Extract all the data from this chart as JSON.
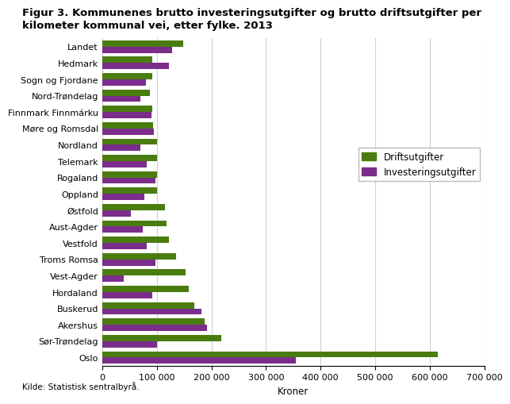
{
  "title_line1": "Figur 3. Kommunenes brutto investeringsutgifter og brutto driftsutgifter per",
  "title_line2": "kilometer kommunal vei, etter fylke. 2013",
  "xlabel": "Kroner",
  "source": "Kilde: Statistisk sentralbyrå.",
  "categories": [
    "Landet",
    "Hedmark",
    "Sogn og Fjordane",
    "Nord-Trøndelag",
    "Finnmark Finnmárku",
    "Møre og Romsdal",
    "Nordland",
    "Telemark",
    "Rogaland",
    "Oppland",
    "Østfold",
    "Aust-Agder",
    "Vestfold",
    "Troms Romsa",
    "Vest-Agder",
    "Hordaland",
    "Buskerud",
    "Akershus",
    "Sør-Trøndelag",
    "Oslo"
  ],
  "driftsutgifter": [
    148000,
    92000,
    92000,
    88000,
    92000,
    93000,
    100000,
    100000,
    100000,
    100000,
    115000,
    118000,
    122000,
    135000,
    152000,
    158000,
    168000,
    188000,
    218000,
    615000
  ],
  "investeringsutgifter": [
    128000,
    122000,
    80000,
    70000,
    90000,
    95000,
    70000,
    82000,
    98000,
    77000,
    52000,
    75000,
    82000,
    98000,
    40000,
    92000,
    182000,
    192000,
    100000,
    355000
  ],
  "color_drifts": "#4a7c10",
  "color_invest": "#7b2d8b",
  "legend_labels": [
    "Driftsutgifter",
    "Investeringsutgifter"
  ],
  "xlim": [
    0,
    700000
  ],
  "xticks": [
    0,
    100000,
    200000,
    300000,
    400000,
    500000,
    600000,
    700000
  ],
  "xtick_labels": [
    "0",
    "100 000",
    "200 000",
    "300 000",
    "400 000",
    "500 000",
    "600 000",
    "700 000"
  ],
  "grid_color": "#d0d0d0",
  "title_fontsize": 9.5,
  "axis_fontsize": 8.5,
  "tick_fontsize": 8,
  "bar_height": 0.38
}
